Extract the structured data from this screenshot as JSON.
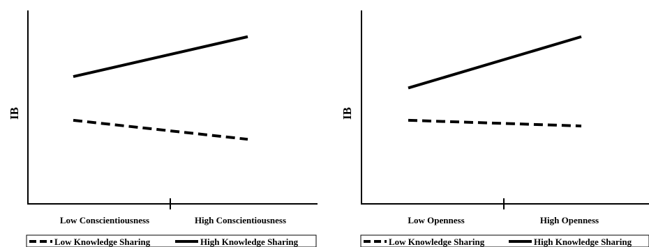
{
  "chart_data": [
    {
      "type": "line",
      "ylabel": "IB",
      "xlabel": "",
      "categories": [
        "Low Conscientiousness",
        "High Conscientiousness"
      ],
      "series": [
        {
          "name": "Low Knowledge Sharing",
          "style": "dashed",
          "values": [
            0.44,
            0.34
          ]
        },
        {
          "name": "High Knowledge Sharing",
          "style": "solid",
          "values": [
            0.67,
            0.88
          ]
        }
      ],
      "ylim": [
        0,
        1
      ],
      "grid": false,
      "legend": {
        "placement": "bottom",
        "items": [
          {
            "label": "Low Knowledge Sharing",
            "style": "dashed"
          },
          {
            "label": "High Knowledge Sharing",
            "style": "solid"
          }
        ]
      }
    },
    {
      "type": "line",
      "ylabel": "IB",
      "xlabel": "",
      "categories": [
        "Low Openness",
        "High Openness"
      ],
      "series": [
        {
          "name": "Low Knowledge Sharing",
          "style": "dashed",
          "values": [
            0.44,
            0.41
          ]
        },
        {
          "name": "High Knowledge Sharing",
          "style": "solid",
          "values": [
            0.61,
            0.88
          ]
        }
      ],
      "ylim": [
        0,
        1
      ],
      "grid": false,
      "legend": {
        "placement": "bottom",
        "items": [
          {
            "label": "Low Knowledge Sharing",
            "style": "dashed"
          },
          {
            "label": "High Knowledge Sharing",
            "style": "solid"
          }
        ]
      }
    }
  ],
  "colors": {
    "lines": "#000000",
    "background": "#ffffff"
  }
}
